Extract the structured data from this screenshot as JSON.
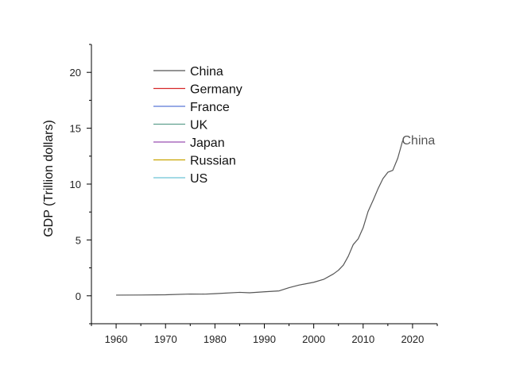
{
  "chart_data": {
    "type": "line",
    "title": "",
    "xlabel": "",
    "ylabel": "GDP (Trillion dollars)",
    "xlim": [
      1955,
      2025
    ],
    "ylim": [
      -2.5,
      22.5
    ],
    "xticks": [
      1960,
      1970,
      1980,
      1990,
      2000,
      2010,
      2020
    ],
    "yticks": [
      0,
      5,
      10,
      15,
      20
    ],
    "legend_position": "top-left",
    "series": [
      {
        "name": "China",
        "color": "#555555",
        "x": [
          1960,
          1965,
          1970,
          1975,
          1978,
          1980,
          1985,
          1987,
          1990,
          1993,
          1995,
          1997,
          2000,
          2002,
          2004,
          2005,
          2006,
          2007,
          2008,
          2009,
          2010,
          2011,
          2012,
          2013,
          2014,
          2015,
          2016,
          2017,
          2018
        ],
        "y": [
          0.06,
          0.07,
          0.09,
          0.16,
          0.15,
          0.19,
          0.31,
          0.27,
          0.36,
          0.44,
          0.73,
          0.96,
          1.21,
          1.47,
          1.96,
          2.29,
          2.75,
          3.55,
          4.59,
          5.1,
          6.09,
          7.55,
          8.53,
          9.57,
          10.48,
          11.06,
          11.23,
          12.31,
          13.89
        ]
      },
      {
        "name": "Germany",
        "color": "#d62728",
        "x": [],
        "y": []
      },
      {
        "name": "France",
        "color": "#5a78d8",
        "x": [],
        "y": []
      },
      {
        "name": "UK",
        "color": "#5fa08f",
        "x": [],
        "y": []
      },
      {
        "name": "Japan",
        "color": "#9b4fb0",
        "x": [],
        "y": []
      },
      {
        "name": "Russian",
        "color": "#c8a400",
        "x": [],
        "y": []
      },
      {
        "name": "US",
        "color": "#6cc3d5",
        "x": [],
        "y": []
      }
    ],
    "annotations": [
      {
        "text": "China",
        "x": 2018,
        "y": 13.89
      }
    ]
  }
}
